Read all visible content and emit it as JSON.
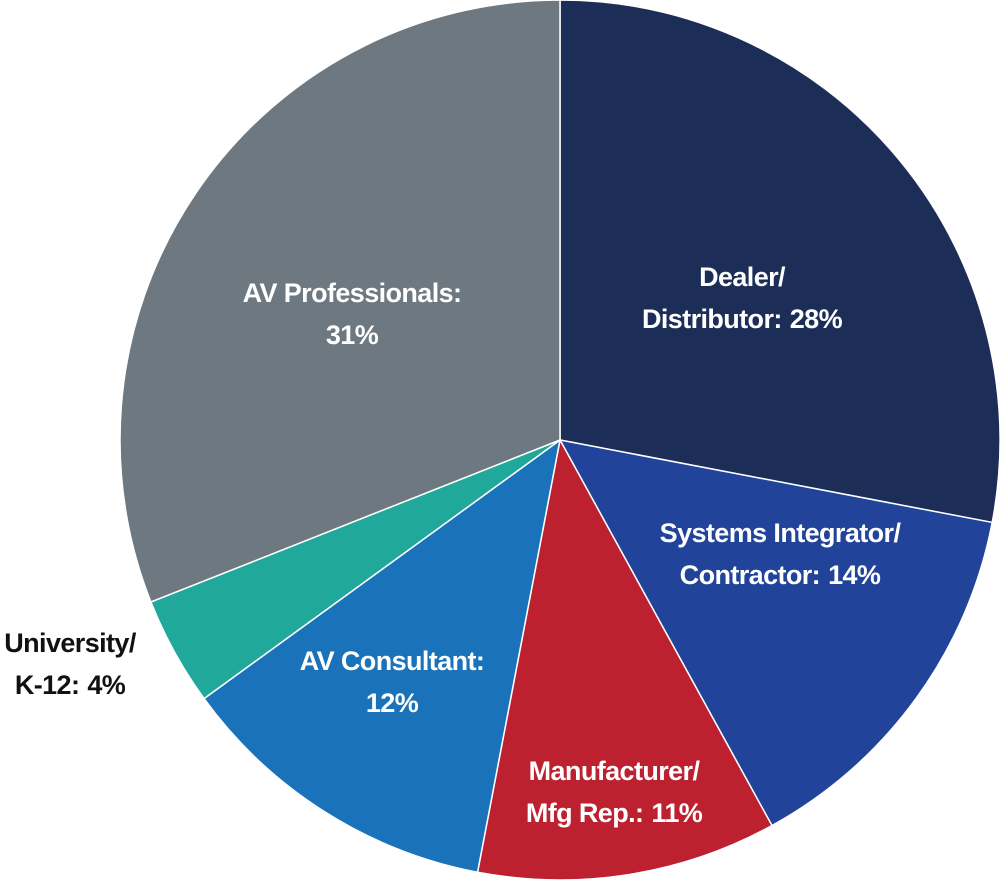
{
  "chart_data": {
    "type": "pie",
    "categories": [
      [
        "Dealer/",
        "Distributor:"
      ],
      [
        "Systems Integrator/",
        "Contractor:"
      ],
      [
        "Manufacturer/",
        "Mfg Rep.:"
      ],
      [
        "AV Consultant:"
      ],
      [
        "University/",
        "K-12:"
      ],
      [
        "AV Professionals:"
      ]
    ],
    "values": [
      28,
      14,
      11,
      12,
      4,
      31
    ],
    "value_labels": [
      "28%",
      "14%",
      "11%",
      "12%",
      "4%",
      "31%"
    ],
    "colors": [
      "#1c2d57",
      "#21439a",
      "#bd202e",
      "#1a72ba",
      "#20a89a",
      "#6d7880"
    ]
  }
}
